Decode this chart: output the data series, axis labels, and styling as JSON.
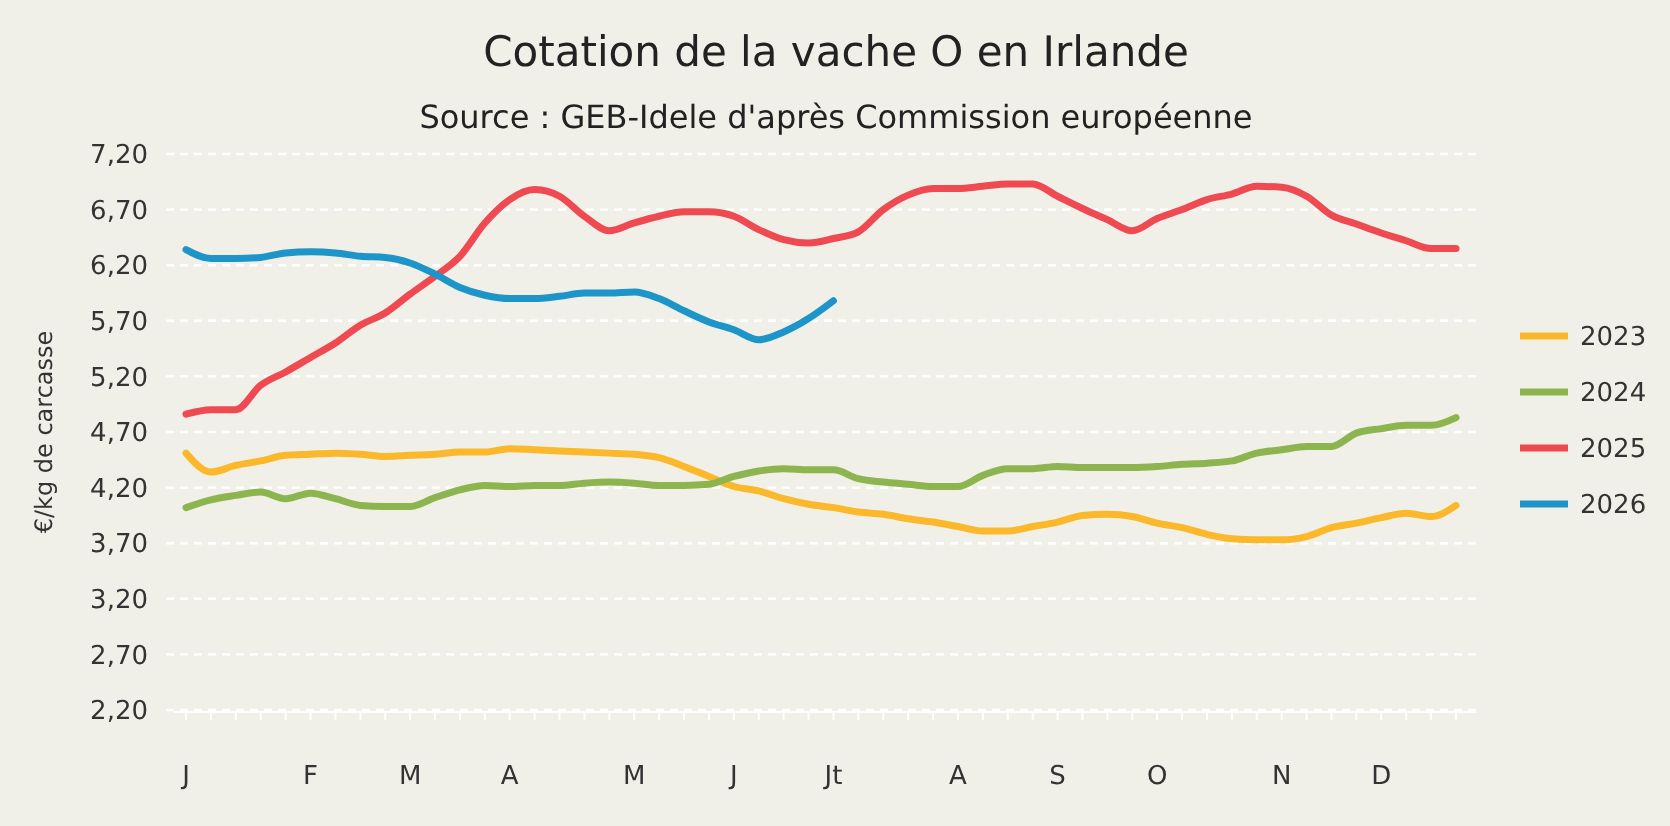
{
  "chart_data": {
    "type": "line",
    "title": "Cotation de la vache O en Irlande",
    "subtitle": "Source : GEB-Idele d'après Commission européenne",
    "ylabel": "€/kg de carcasse",
    "categories": [
      "J",
      null,
      null,
      null,
      null,
      "F",
      null,
      null,
      null,
      "M",
      null,
      null,
      null,
      "A",
      null,
      null,
      null,
      null,
      "M",
      null,
      null,
      null,
      "J",
      null,
      null,
      null,
      "Jt",
      null,
      null,
      null,
      null,
      "A",
      null,
      null,
      null,
      "S",
      null,
      null,
      null,
      "O",
      null,
      null,
      null,
      null,
      "N",
      null,
      null,
      null,
      "D",
      null,
      null,
      null
    ],
    "ylim": [
      2.2,
      7.2
    ],
    "yticks": [
      {
        "value": 2.2,
        "label": "2,20"
      },
      {
        "value": 2.7,
        "label": "2,70"
      },
      {
        "value": 3.2,
        "label": "3,20"
      },
      {
        "value": 3.7,
        "label": "3,70"
      },
      {
        "value": 4.2,
        "label": "4,20"
      },
      {
        "value": 4.7,
        "label": "4,70"
      },
      {
        "value": 5.2,
        "label": "5,20"
      },
      {
        "value": 5.7,
        "label": "5,70"
      },
      {
        "value": 6.2,
        "label": "6,20"
      },
      {
        "value": 6.7,
        "label": "6,70"
      },
      {
        "value": 7.2,
        "label": "7,20"
      }
    ],
    "grid": "y",
    "legend": "right",
    "marker": "none",
    "line_style": "solid",
    "series": [
      {
        "name": "2023",
        "color": "#fbb82b",
        "values": [
          4.51,
          4.34,
          4.4,
          4.44,
          4.49,
          4.5,
          4.51,
          4.5,
          4.48,
          4.49,
          4.5,
          4.52,
          4.52,
          4.55,
          4.54,
          4.53,
          4.52,
          4.51,
          4.5,
          4.47,
          4.39,
          4.3,
          4.21,
          4.17,
          4.1,
          4.05,
          4.02,
          3.98,
          3.96,
          3.92,
          3.89,
          3.85,
          3.81,
          3.81,
          3.85,
          3.89,
          3.95,
          3.96,
          3.94,
          3.88,
          3.84,
          3.78,
          3.74,
          3.73,
          3.73,
          3.76,
          3.84,
          3.88,
          3.93,
          3.97,
          3.94,
          4.04
        ]
      },
      {
        "name": "2024",
        "color": "#8db54f",
        "values": [
          4.02,
          4.09,
          4.13,
          4.16,
          4.1,
          4.15,
          4.1,
          4.04,
          4.03,
          4.03,
          4.11,
          4.18,
          4.22,
          4.21,
          4.22,
          4.22,
          4.24,
          4.25,
          4.24,
          4.22,
          4.22,
          4.23,
          4.3,
          4.35,
          4.37,
          4.36,
          4.36,
          4.28,
          4.25,
          4.23,
          4.21,
          4.21,
          4.31,
          4.37,
          4.37,
          4.39,
          4.38,
          4.38,
          4.38,
          4.39,
          4.41,
          4.42,
          4.44,
          4.51,
          4.54,
          4.57,
          4.57,
          4.69,
          4.73,
          4.76,
          4.76,
          4.83
        ]
      },
      {
        "name": "2025",
        "color": "#ef4a51",
        "values": [
          4.86,
          4.9,
          4.9,
          5.12,
          5.24,
          5.37,
          5.5,
          5.66,
          5.77,
          5.94,
          6.1,
          6.28,
          6.58,
          6.79,
          6.88,
          6.82,
          6.64,
          6.51,
          6.58,
          6.64,
          6.68,
          6.68,
          6.64,
          6.52,
          6.43,
          6.4,
          6.44,
          6.5,
          6.7,
          6.83,
          6.89,
          6.89,
          6.91,
          6.93,
          6.93,
          6.82,
          6.71,
          6.61,
          6.51,
          6.62,
          6.7,
          6.79,
          6.84,
          6.91,
          6.9,
          6.82,
          6.65,
          6.57,
          6.49,
          6.42,
          6.35,
          6.35
        ]
      },
      {
        "name": "2026",
        "color": "#1d95c9",
        "values": [
          6.34,
          6.26,
          6.26,
          6.27,
          6.31,
          6.32,
          6.31,
          6.28,
          6.27,
          6.22,
          6.12,
          6.0,
          5.93,
          5.9,
          5.9,
          5.92,
          5.95,
          5.95,
          5.96,
          5.9,
          5.79,
          5.69,
          5.62,
          5.53,
          5.6,
          5.72,
          5.88,
          null,
          null,
          null,
          null,
          null,
          null,
          null,
          null,
          null,
          null,
          null,
          null,
          null,
          null,
          null,
          null,
          null,
          null,
          null,
          null,
          null,
          null,
          null,
          null,
          null
        ]
      }
    ]
  }
}
